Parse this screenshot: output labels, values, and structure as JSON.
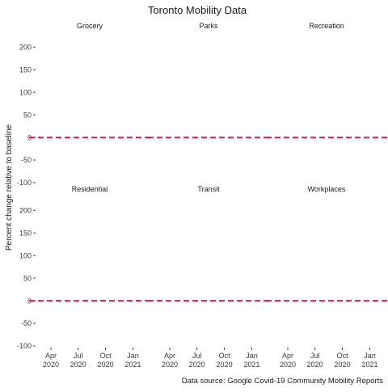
{
  "chart_data": {
    "type": "line",
    "title": "Toronto Mobility Data",
    "ylabel": "Percent change relative to baseline",
    "caption": "Data source: Google Covid-19 Community Mobility Reports",
    "ylim": [
      -100,
      220
    ],
    "y_ticks": [
      200,
      150,
      100,
      50,
      0,
      -50,
      -100
    ],
    "x_ticks": [
      {
        "date": "2020-04-01",
        "label1": "Apr",
        "label2": "2020"
      },
      {
        "date": "2020-07-01",
        "label1": "Jul",
        "label2": "2020"
      },
      {
        "date": "2020-10-01",
        "label1": "Oct",
        "label2": "2020"
      },
      {
        "date": "2021-01-01",
        "label1": "Jan",
        "label2": "2021"
      }
    ],
    "xlim": [
      "2020-02-15",
      "2021-02-01"
    ],
    "reference_line": {
      "y": 0,
      "style": "dashed",
      "color": "#d81b60"
    },
    "grid": false,
    "facets": [
      {
        "name": "Grocery",
        "values": []
      },
      {
        "name": "Parks",
        "values": []
      },
      {
        "name": "Recreation",
        "values": []
      },
      {
        "name": "Residential",
        "values": []
      },
      {
        "name": "Transit",
        "values": []
      },
      {
        "name": "Workplaces",
        "values": []
      }
    ]
  },
  "colors": {
    "reference_line": "#d81b60",
    "text": "#1a1a1a",
    "axis_text": "#3a3a3a"
  }
}
